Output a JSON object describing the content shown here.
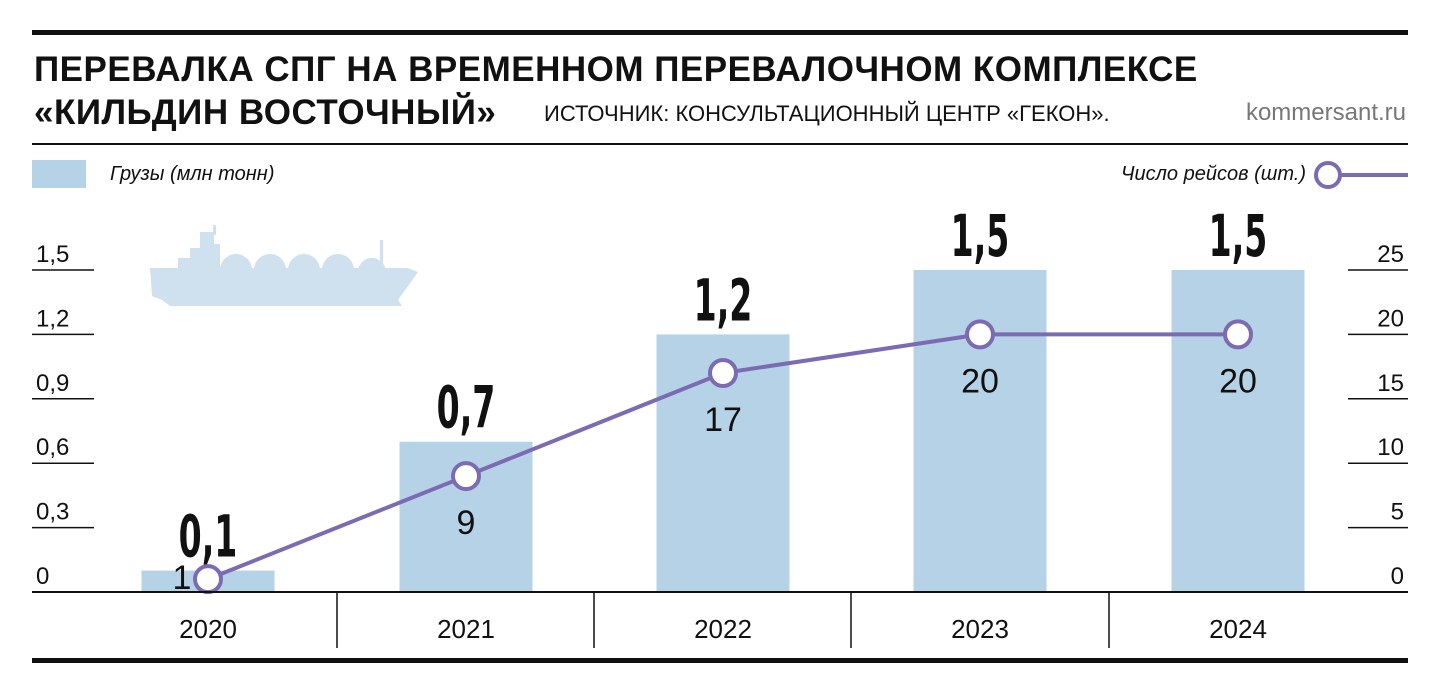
{
  "header": {
    "title_line1": "ПЕРЕВАЛКА СПГ НА ВРЕМЕННОМ ПЕРЕВАЛОЧНОМ КОМПЛЕКСЕ",
    "title_line2": "«КИЛЬДИН ВОСТОЧНЫЙ»",
    "source": "ИСТОЧНИК: КОНСУЛЬТАЦИОННЫЙ ЦЕНТР «ГЕКОН».",
    "credit": "kommersant.ru"
  },
  "legend": {
    "bars_label": "Грузы (млн тонн)",
    "line_label": "Число рейсов (шт.)"
  },
  "colors": {
    "bar": "#b6d2e6",
    "line": "#7b6bb3",
    "text": "#111111",
    "ship": "#cfe0ee"
  },
  "icons": {
    "ship": "lng-tanker-icon"
  },
  "chart_data": {
    "type": "bar",
    "categories": [
      "2020",
      "2021",
      "2022",
      "2023",
      "2024"
    ],
    "series": [
      {
        "name": "Грузы (млн тонн)",
        "type": "bar",
        "axis": "left",
        "values": [
          0.1,
          0.7,
          1.2,
          1.5,
          1.5
        ],
        "labels": [
          "0,1",
          "0,7",
          "1,2",
          "1,5",
          "1,5"
        ]
      },
      {
        "name": "Число рейсов (шт.)",
        "type": "line",
        "axis": "right",
        "values": [
          1,
          9,
          17,
          20,
          20
        ],
        "labels": [
          "1",
          "9",
          "17",
          "20",
          "20"
        ]
      }
    ],
    "y_left": {
      "lim": [
        0,
        1.5
      ],
      "ticks": [
        0,
        0.3,
        0.6,
        0.9,
        1.2,
        1.5
      ],
      "tick_labels": [
        "0",
        "0,3",
        "0,6",
        "0,9",
        "1,2",
        "1,5"
      ]
    },
    "y_right": {
      "lim": [
        0,
        25
      ],
      "ticks": [
        0,
        5,
        10,
        15,
        20,
        25
      ],
      "tick_labels": [
        "0",
        "5",
        "10",
        "15",
        "20",
        "25"
      ]
    },
    "grid": false,
    "legend_position": "top"
  }
}
